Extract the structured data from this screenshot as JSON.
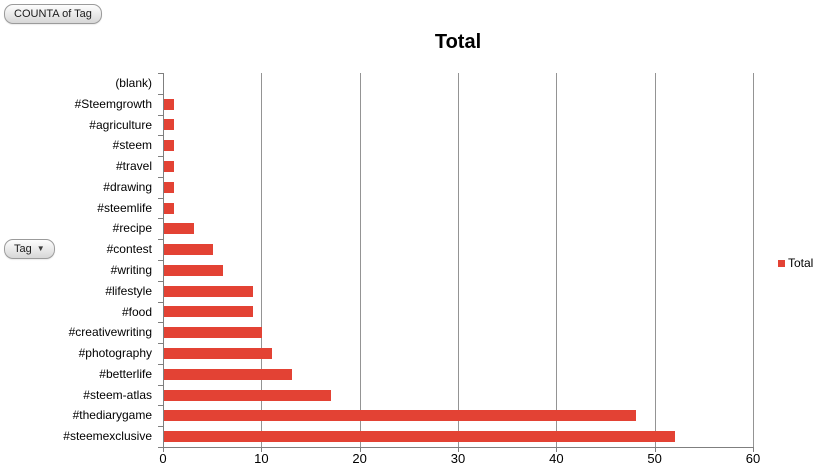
{
  "pivot_controls": {
    "value_field_button": "COUNTA of Tag",
    "row_field_button": "Tag",
    "dropdown_icon": "▼"
  },
  "chart_data": {
    "type": "bar",
    "orientation": "horizontal",
    "title": "Total",
    "categories": [
      "(blank)",
      "#Steemgrowth",
      "#agriculture",
      "#steem",
      "#travel",
      "#drawing",
      "#steemlife",
      "#recipe",
      "#contest",
      "#writing",
      "#lifestyle",
      "#food",
      "#creativewriting",
      "#photography",
      "#betterlife",
      "#steem-atlas",
      "#thediarygame",
      "#steemexclusive"
    ],
    "values": [
      0,
      1,
      1,
      1,
      1,
      1,
      1,
      3,
      5,
      6,
      9,
      9,
      10,
      11,
      13,
      17,
      48,
      52
    ],
    "xlim": [
      0,
      60
    ],
    "x_ticks": [
      0,
      10,
      20,
      30,
      40,
      50,
      60
    ],
    "grid": true,
    "legend": {
      "position": "right",
      "entries": [
        "Total"
      ]
    },
    "series_color": "#e34234"
  },
  "colors": {
    "bar": "#e34234",
    "axis": "#7f7f7f",
    "gridline": "#949494",
    "background": "#ffffff"
  }
}
